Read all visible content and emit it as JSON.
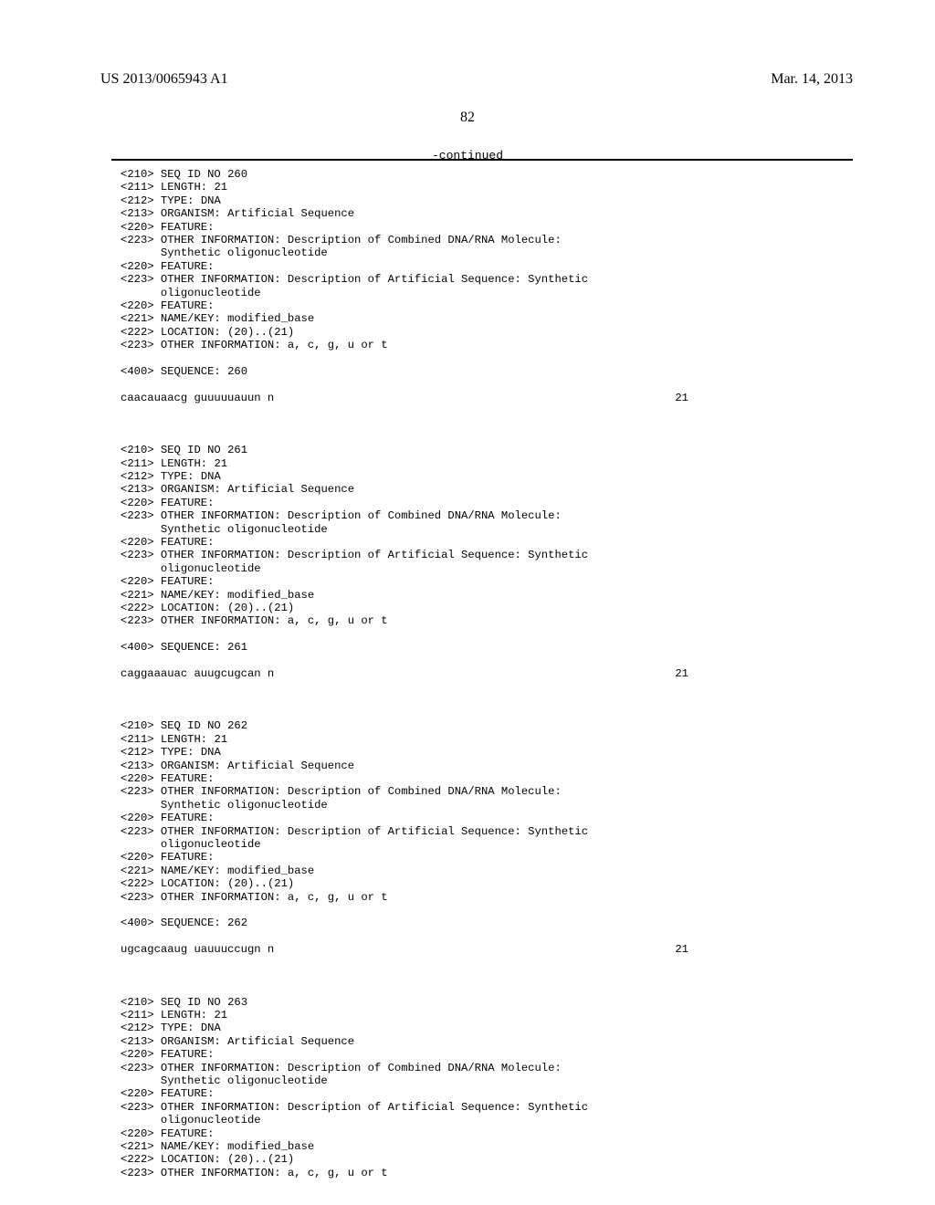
{
  "header": {
    "publication_number": "US 2013/0065943 A1",
    "publication_date": "Mar. 14, 2013",
    "page_number": "82",
    "continued_label": "-continued"
  },
  "entries": [
    {
      "seq_id": "260",
      "length": "21",
      "type": "DNA",
      "organism": "Artificial Sequence",
      "feature1_info": "Description of Combined DNA/RNA Molecule:",
      "feature1_sub": "Synthetic oligonucleotide",
      "feature2_info": "Description of Artificial Sequence: Synthetic",
      "feature2_sub": "oligonucleotide",
      "name_key": "modified_base",
      "location": "(20)..(21)",
      "other_info3": "a, c, g, u or t",
      "sequence_label": "260",
      "sequence": "caacauaacg guuuuuauun n",
      "sequence_len": "21"
    },
    {
      "seq_id": "261",
      "length": "21",
      "type": "DNA",
      "organism": "Artificial Sequence",
      "feature1_info": "Description of Combined DNA/RNA Molecule:",
      "feature1_sub": "Synthetic oligonucleotide",
      "feature2_info": "Description of Artificial Sequence: Synthetic",
      "feature2_sub": "oligonucleotide",
      "name_key": "modified_base",
      "location": "(20)..(21)",
      "other_info3": "a, c, g, u or t",
      "sequence_label": "261",
      "sequence": "caggaaauac auugcugcan n",
      "sequence_len": "21"
    },
    {
      "seq_id": "262",
      "length": "21",
      "type": "DNA",
      "organism": "Artificial Sequence",
      "feature1_info": "Description of Combined DNA/RNA Molecule:",
      "feature1_sub": "Synthetic oligonucleotide",
      "feature2_info": "Description of Artificial Sequence: Synthetic",
      "feature2_sub": "oligonucleotide",
      "name_key": "modified_base",
      "location": "(20)..(21)",
      "other_info3": "a, c, g, u or t",
      "sequence_label": "262",
      "sequence": "ugcagcaaug uauuuccugn n",
      "sequence_len": "21"
    },
    {
      "seq_id": "263",
      "length": "21",
      "type": "DNA",
      "organism": "Artificial Sequence",
      "feature1_info": "Description of Combined DNA/RNA Molecule:",
      "feature1_sub": "Synthetic oligonucleotide",
      "feature2_info": "Description of Artificial Sequence: Synthetic",
      "feature2_sub": "oligonucleotide",
      "name_key": "modified_base",
      "location": "(20)..(21)",
      "other_info3": "a, c, g, u or t",
      "sequence_label": "",
      "sequence": "",
      "sequence_len": ""
    }
  ],
  "labels": {
    "seq_id_no": "SEQ ID NO",
    "length": "LENGTH:",
    "type": "TYPE:",
    "organism": "ORGANISM:",
    "feature": "FEATURE:",
    "other_information": "OTHER INFORMATION:",
    "name_key": "NAME/KEY:",
    "location": "LOCATION:",
    "sequence": "SEQUENCE:"
  },
  "tags": {
    "t210": "<210>",
    "t211": "<211>",
    "t212": "<212>",
    "t213": "<213>",
    "t220": "<220>",
    "t221": "<221>",
    "t222": "<222>",
    "t223": "<223>",
    "t400": "<400>"
  }
}
